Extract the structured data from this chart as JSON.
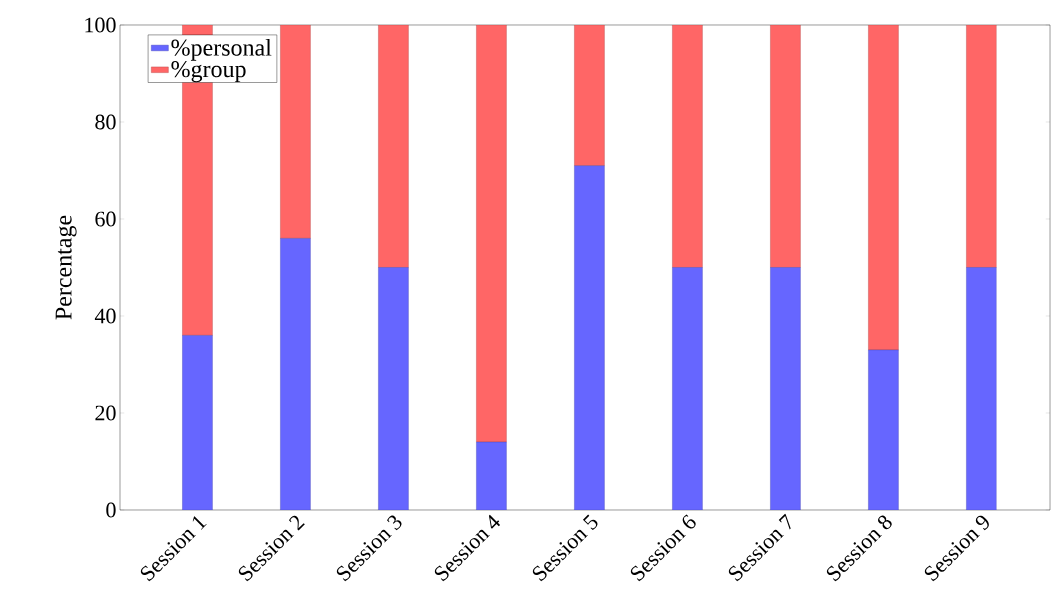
{
  "chart_data": {
    "type": "bar",
    "stacked": true,
    "ylabel": "Percentage",
    "categories": [
      "Session 1",
      "Session 2",
      "Session 3",
      "Session 4",
      "Session 5",
      "Session 6",
      "Session 7",
      "Session 8",
      "Session 9"
    ],
    "series": [
      {
        "name": "%personal",
        "color": "#6666ff",
        "values": [
          36,
          56,
          50,
          14,
          71,
          50,
          50,
          33,
          50
        ]
      },
      {
        "name": "%group",
        "color": "#ff6666",
        "values": [
          64,
          44,
          50,
          86,
          29,
          50,
          50,
          67,
          50
        ]
      }
    ],
    "ylim": [
      0,
      100
    ],
    "yticks": [
      0,
      20,
      40,
      60,
      80,
      100
    ],
    "legend": "top left"
  }
}
